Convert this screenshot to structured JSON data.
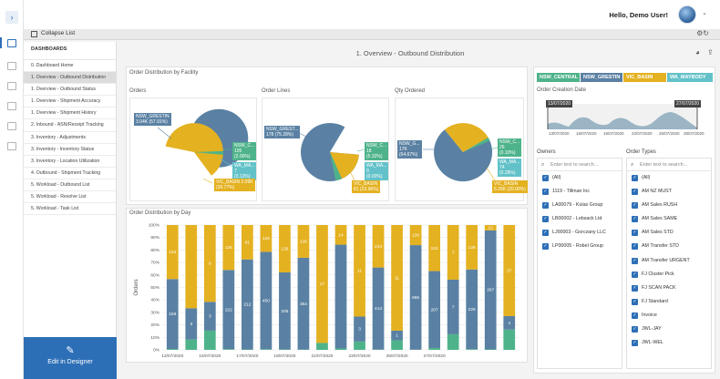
{
  "header": {
    "greeting": "Hello, Demo User!"
  },
  "toolbar": {
    "collapse_label": "Collapse List"
  },
  "sidebar": {
    "heading": "DASHBOARDS",
    "items": [
      "0. Dashboard Home",
      "1. Overview - Outbound Distribution",
      "1. Overview - Outbound Status",
      "1. Overview - Shipment Accuracy",
      "1. Overview - Shipment History",
      "2. Inbound - ASN/Receipt Tracking",
      "3. Inventory - Adjustments",
      "3. Inventory - Inventory Status",
      "3. Inventory - Location Utilization",
      "4. Outbound - Shipment Tracking",
      "5. Workload - Outbound List",
      "5. Workload - Resolve List",
      "5. Workload - Task List"
    ],
    "selected_index": 1,
    "designer_label": "Edit in Designer"
  },
  "main": {
    "title": "1. Overview - Outbound Distribution"
  },
  "colors": {
    "nsw_central": "#4eb38a",
    "nsw_grestin": "#5a81a3",
    "vic_basin": "#e4b120",
    "wa_maybody": "#63c2c9",
    "accent": "#2d6fb7"
  },
  "facility": {
    "title": "Order Distribution by Facility",
    "orders": {
      "title": "Orders",
      "labels": {
        "grestin": "NSW_GRESTIN\n3.04K (57.91%)",
        "central": "NSW_C...\n105\n(2.00%)",
        "wa": "WA_MA...\n7\n(0.13%)",
        "basin": "VIC_BASIN 2.09K\n(39.77%)"
      }
    },
    "lines": {
      "title": "Order Lines",
      "labels": {
        "grestin": "NSW_GREST...\n178 (75.28%)",
        "central": "NSW_C...\n18\n(5.32%)",
        "wa": "WA_MA...\n0\n(0.00%)",
        "basin": "VIC_BASIN\n81 (23.96%)"
      }
    },
    "qty": {
      "title": "Qty Ordered",
      "labels": {
        "grestin": "NSW_G...\n17K\n(64.67%)",
        "central": "NSW_C...\n26\n(0.10%)",
        "wa": "WA_MA...\n74\n(0.28%)",
        "basin": "VIC_BASIN\n5.26K (20.00%)"
      }
    }
  },
  "day_chart_title": "Order Distribution by Day",
  "chart_data": {
    "type": "bar",
    "stacked": "percent",
    "ylabel": "Orders",
    "ylim": [
      0,
      100
    ],
    "yticks": [
      "0%",
      "10%",
      "20%",
      "30%",
      "40%",
      "50%",
      "60%",
      "70%",
      "80%",
      "90%",
      "100%"
    ],
    "x_tick_labels": [
      "13/07/2020",
      "15/07/2020",
      "17/07/2020",
      "19/07/2020",
      "21/07/2020",
      "23/07/2020",
      "25/07/2020",
      "27/07/2020"
    ],
    "series": [
      {
        "name": "NSW_CENTRAL",
        "values": [
          2,
          1,
          2,
          2,
          1,
          3,
          1,
          1,
          1,
          1,
          1,
          1,
          1,
          1,
          5,
          2,
          2,
          1,
          6
        ]
      },
      {
        "name": "NSW_GRESTIN",
        "values": [
          158,
          3,
          3,
          222,
          212,
          450,
          205,
          354,
          0,
          74,
          3,
          414,
          1,
          655,
          207,
          7,
          226,
          267,
          4
        ]
      },
      {
        "name": "VIC_BASIN",
        "values": [
          122,
          8,
          8,
          126,
          81,
          124,
          126,
          126,
          17,
          14,
          11,
          214,
          11,
          126,
          124,
          7,
          126,
          12,
          27
        ]
      }
    ],
    "data_labels": [
      [
        "158",
        "122"
      ],
      [
        "3",
        "",
        ""
      ],
      [
        "3",
        "8"
      ],
      [
        "222",
        "126"
      ],
      [
        "212",
        "81"
      ],
      [
        "450",
        "126"
      ],
      [
        "205",
        "126"
      ],
      [
        "354",
        "126"
      ],
      [
        "",
        "17"
      ],
      [
        "",
        "14"
      ],
      [
        "3",
        "11"
      ],
      [
        "414",
        "214"
      ],
      [
        "1",
        "11"
      ],
      [
        "655",
        "126"
      ],
      [
        "207",
        "124"
      ],
      [
        "7",
        "7"
      ],
      [
        "226",
        "126"
      ],
      [
        "267",
        "12"
      ],
      [
        "4",
        "27"
      ]
    ]
  },
  "filters": {
    "chips": [
      "NSW_CENTRAL",
      "NSW_GRESTIN",
      "VIC_BASIN",
      "WA_MAYBODY"
    ],
    "date_title": "Order Creation Date",
    "date_start": "13/07/2020",
    "date_end": "27/07/2020",
    "date_ticks": [
      "13/07/2020",
      "16/07/2020",
      "19/07/2020",
      "22/07/2020",
      "25/07/2020",
      "28/07/2020"
    ],
    "owners_title": "Owners",
    "owners_placeholder": "Enter text to search...",
    "owners": [
      "(All)",
      "1119 - Tillman Inc",
      "LA00079 - Kulas Group",
      "LB00002 - Lebsack Ltd",
      "LJ00003 - Gorczany LLC",
      "LP00005 - Robel Group"
    ],
    "types_title": "Order Types",
    "types_placeholder": "Enter text to search...",
    "types": [
      "(All)",
      "AM NZ MUST",
      "AM Sales RUSH",
      "AM Sales SAME",
      "AM Sales STD",
      "AM Transfer STD",
      "AM Transfer URGENT",
      "FJ Cluster Pick",
      "FJ SCAN PACK",
      "FJ Standard",
      "Invoice",
      "JWL-JAY",
      "JWL-WEL"
    ]
  }
}
